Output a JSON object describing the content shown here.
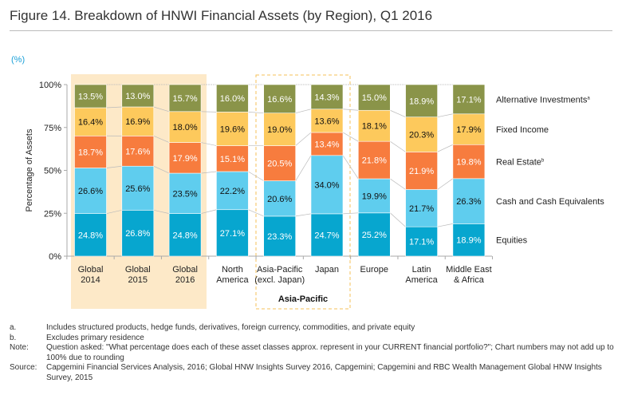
{
  "title": "Figure 14. Breakdown of HNWI Financial Assets (by Region), Q1 2016",
  "unit_label": "(%)",
  "group_label": "Asia-Pacific",
  "chart_data": {
    "type": "bar",
    "stacked": true,
    "ylabel": "Percentage of Assets",
    "ylim": [
      0,
      100
    ],
    "yticks": [
      "0%",
      "25%",
      "50%",
      "75%",
      "100%"
    ],
    "categories": [
      [
        "Global",
        "2014"
      ],
      [
        "Global",
        "2015"
      ],
      [
        "Global",
        "2016"
      ],
      [
        "North",
        "America"
      ],
      [
        "Asia-Pacific",
        "(excl. Japan)"
      ],
      [
        "Japan"
      ],
      [
        "Europe"
      ],
      [
        "Latin",
        "America"
      ],
      [
        "Middle East",
        "& Africa"
      ]
    ],
    "legend_position": "right",
    "series": [
      {
        "name": "Equities",
        "color": "#07a6cf",
        "text_color": "#ffffff",
        "values": [
          24.8,
          26.8,
          24.8,
          27.1,
          23.3,
          24.7,
          25.2,
          17.1,
          18.9
        ]
      },
      {
        "name": "Cash and Cash Equivalents",
        "color": "#5fcdee",
        "text_color": "#111111",
        "values": [
          26.6,
          25.6,
          23.5,
          22.2,
          20.6,
          34.0,
          19.9,
          21.7,
          26.3
        ]
      },
      {
        "name": "Real Estate",
        "superscript": "b",
        "color": "#f77c3e",
        "text_color": "#ffffff",
        "values": [
          18.7,
          17.6,
          17.9,
          15.1,
          20.5,
          13.4,
          21.8,
          21.9,
          19.8
        ]
      },
      {
        "name": "Fixed Income",
        "color": "#fdc95c",
        "text_color": "#111111",
        "values": [
          16.4,
          16.9,
          18.0,
          19.6,
          19.0,
          13.6,
          18.1,
          20.3,
          17.9
        ]
      },
      {
        "name": "Alternative Investments",
        "superscript": "a",
        "color": "#8a9449",
        "text_color": "#ffffff",
        "values": [
          13.5,
          13.0,
          15.7,
          16.0,
          16.6,
          14.3,
          15.0,
          18.9,
          17.1
        ]
      }
    ]
  },
  "notes": [
    {
      "key": "a.",
      "text": "Includes structured products, hedge funds, derivatives, foreign currency, commodities, and private equity"
    },
    {
      "key": "b.",
      "text": "Excludes primary residence"
    },
    {
      "key": "Note:",
      "text": "Question asked: \"What percentage does each of these asset classes approx. represent in your CURRENT financial portfolio?\"; Chart numbers may not add up to 100% due to rounding"
    },
    {
      "key": "Source:",
      "text": "Capgemini Financial Services Analysis, 2016; Global HNW Insights Survey 2016, Capgemini; Capgemini and RBC Wealth Management Global HNW Insights Survey, 2015"
    }
  ]
}
